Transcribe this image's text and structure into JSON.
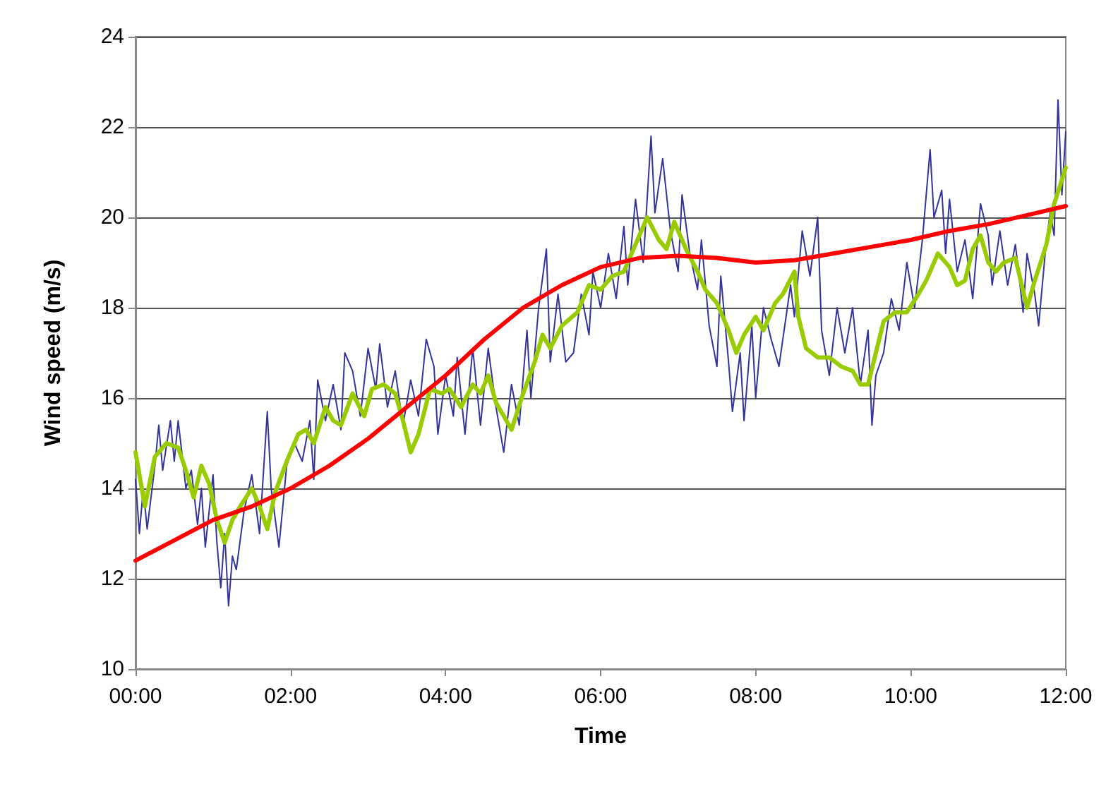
{
  "chart_data": {
    "type": "line",
    "xlabel": "Time",
    "ylabel": "Wind speed (m/s)",
    "xlim": [
      0,
      12
    ],
    "ylim": [
      10,
      24
    ],
    "xticks": [
      {
        "value": 0,
        "label": "00:00"
      },
      {
        "value": 2,
        "label": "02:00"
      },
      {
        "value": 4,
        "label": "04:00"
      },
      {
        "value": 6,
        "label": "06:00"
      },
      {
        "value": 8,
        "label": "08:00"
      },
      {
        "value": 10,
        "label": "10:00"
      },
      {
        "value": 12,
        "label": "12:00"
      }
    ],
    "yticks": [
      10,
      12,
      14,
      16,
      18,
      20,
      22,
      24
    ],
    "grid": "y",
    "marker": "none",
    "line_style": "solid",
    "series": [
      {
        "color": "#333399",
        "x": [
          0,
          0.05,
          0.1,
          0.15,
          0.25,
          0.3,
          0.35,
          0.45,
          0.5,
          0.55,
          0.65,
          0.72,
          0.8,
          0.85,
          0.9,
          1,
          1.05,
          1.1,
          1.15,
          1.2,
          1.25,
          1.3,
          1.4,
          1.5,
          1.6,
          1.7,
          1.75,
          1.85,
          1.95,
          2.05,
          2.15,
          2.25,
          2.3,
          2.35,
          2.45,
          2.55,
          2.65,
          2.7,
          2.8,
          2.9,
          3,
          3.1,
          3.15,
          3.25,
          3.35,
          3.45,
          3.55,
          3.65,
          3.75,
          3.85,
          3.9,
          4,
          4.1,
          4.15,
          4.25,
          4.35,
          4.45,
          4.55,
          4.65,
          4.75,
          4.85,
          4.95,
          5.05,
          5.1,
          5.2,
          5.3,
          5.35,
          5.45,
          5.55,
          5.65,
          5.75,
          5.85,
          5.9,
          6,
          6.1,
          6.2,
          6.3,
          6.35,
          6.45,
          6.55,
          6.65,
          6.7,
          6.8,
          6.9,
          7,
          7.05,
          7.15,
          7.25,
          7.3,
          7.4,
          7.5,
          7.55,
          7.65,
          7.7,
          7.8,
          7.85,
          7.95,
          8,
          8.1,
          8.2,
          8.3,
          8.45,
          8.5,
          8.6,
          8.7,
          8.8,
          8.85,
          8.95,
          9.05,
          9.15,
          9.25,
          9.35,
          9.45,
          9.5,
          9.55,
          9.65,
          9.75,
          9.85,
          9.95,
          10.05,
          10.15,
          10.25,
          10.3,
          10.4,
          10.45,
          10.5,
          10.6,
          10.7,
          10.8,
          10.9,
          11,
          11.05,
          11.15,
          11.25,
          11.35,
          11.45,
          11.5,
          11.6,
          11.65,
          11.75,
          11.8,
          11.85,
          11.9,
          11.95,
          12
        ],
        "values": [
          14.2,
          13,
          14,
          13.1,
          14.5,
          15.4,
          14.4,
          15.5,
          14.6,
          15.5,
          14,
          14.4,
          13.2,
          14,
          12.7,
          14.3,
          12.8,
          11.8,
          13,
          11.4,
          12.5,
          12.2,
          13.5,
          14.3,
          13,
          15.7,
          14,
          12.7,
          14.5,
          15,
          14.6,
          15.5,
          14.2,
          16.4,
          15.5,
          16.3,
          15.3,
          17,
          16.6,
          15.6,
          17.1,
          16.2,
          17.2,
          15.8,
          16.6,
          15.4,
          16.4,
          15.6,
          17.3,
          16.7,
          15.2,
          16.5,
          15.6,
          16.9,
          15.2,
          17.1,
          15.4,
          17.1,
          15.8,
          14.8,
          16.3,
          15.4,
          17.5,
          16,
          18,
          19.3,
          16.8,
          18.3,
          16.8,
          17,
          18.3,
          17.4,
          18.8,
          18,
          19.2,
          18.2,
          19.8,
          18.5,
          20.4,
          19,
          21.8,
          20.1,
          21.3,
          19.7,
          18.8,
          20.5,
          19.2,
          18.4,
          19.5,
          17.6,
          16.7,
          18.7,
          16.8,
          15.7,
          17,
          15.5,
          17.6,
          16,
          18,
          17.3,
          16.7,
          18.5,
          17.8,
          19.7,
          18.7,
          20,
          17.5,
          16.5,
          18,
          17,
          18,
          16.3,
          17.5,
          15.4,
          16.5,
          17,
          18.2,
          17.5,
          19,
          18,
          19.5,
          21.5,
          20,
          20.6,
          19.2,
          20.4,
          18.8,
          19.5,
          18.2,
          20.3,
          19.6,
          18.5,
          19.7,
          18.5,
          19.4,
          17.9,
          19.2,
          18.3,
          17.6,
          19.5,
          20.1,
          19.6,
          22.6,
          20.5,
          21.9
        ]
      },
      {
        "color": "#99cc00",
        "x": [
          0,
          0.12,
          0.25,
          0.4,
          0.55,
          0.65,
          0.75,
          0.85,
          0.95,
          1.05,
          1.15,
          1.25,
          1.35,
          1.5,
          1.6,
          1.7,
          1.8,
          1.95,
          2.1,
          2.2,
          2.3,
          2.45,
          2.55,
          2.65,
          2.8,
          2.95,
          3.05,
          3.2,
          3.35,
          3.45,
          3.55,
          3.65,
          3.8,
          3.95,
          4.05,
          4.2,
          4.35,
          4.45,
          4.55,
          4.65,
          4.75,
          4.85,
          5,
          5.15,
          5.25,
          5.35,
          5.5,
          5.7,
          5.85,
          6,
          6.15,
          6.3,
          6.45,
          6.6,
          6.75,
          6.85,
          6.95,
          7.1,
          7.25,
          7.35,
          7.5,
          7.65,
          7.75,
          7.85,
          8,
          8.1,
          8.25,
          8.35,
          8.5,
          8.55,
          8.65,
          8.8,
          8.95,
          9.1,
          9.25,
          9.35,
          9.45,
          9.55,
          9.65,
          9.8,
          9.95,
          10.1,
          10.2,
          10.35,
          10.5,
          10.6,
          10.7,
          10.8,
          10.9,
          11,
          11.1,
          11.2,
          11.35,
          11.5,
          11.6,
          11.75,
          11.85,
          12
        ],
        "values": [
          14.8,
          13.6,
          14.7,
          15,
          14.9,
          14.4,
          13.8,
          14.5,
          14.1,
          13.3,
          12.8,
          13.3,
          13.6,
          14,
          13.6,
          13.1,
          13.9,
          14.6,
          15.2,
          15.3,
          15,
          15.8,
          15.5,
          15.4,
          16.1,
          15.6,
          16.2,
          16.3,
          16.1,
          15.5,
          14.8,
          15.2,
          16.2,
          16.1,
          16.2,
          15.8,
          16.3,
          16.1,
          16.5,
          15.9,
          15.6,
          15.3,
          16.1,
          16.8,
          17.4,
          17.1,
          17.6,
          17.9,
          18.5,
          18.4,
          18.7,
          18.8,
          19.4,
          20,
          19.5,
          19.3,
          19.9,
          19.3,
          18.8,
          18.4,
          18.1,
          17.5,
          17,
          17.4,
          17.8,
          17.5,
          18.1,
          18.3,
          18.8,
          17.8,
          17.1,
          16.9,
          16.9,
          16.7,
          16.6,
          16.3,
          16.3,
          17,
          17.7,
          17.9,
          17.9,
          18.3,
          18.6,
          19.2,
          18.9,
          18.5,
          18.6,
          19.3,
          19.6,
          19,
          18.8,
          19,
          19.1,
          18,
          18.6,
          19.4,
          20.3,
          21.1
        ]
      },
      {
        "color": "#ff0000",
        "x": [
          0,
          0.5,
          1,
          1.5,
          2,
          2.5,
          3,
          3.5,
          4,
          4.5,
          5,
          5.5,
          6,
          6.5,
          7,
          7.5,
          8,
          8.5,
          9,
          9.5,
          10,
          10.5,
          11,
          11.5,
          12
        ],
        "values": [
          12.4,
          12.85,
          13.3,
          13.6,
          14,
          14.5,
          15.1,
          15.8,
          16.5,
          17.3,
          18,
          18.5,
          18.9,
          19.1,
          19.15,
          19.1,
          19,
          19.05,
          19.2,
          19.35,
          19.5,
          19.7,
          19.85,
          20.05,
          20.25
        ]
      }
    ]
  }
}
